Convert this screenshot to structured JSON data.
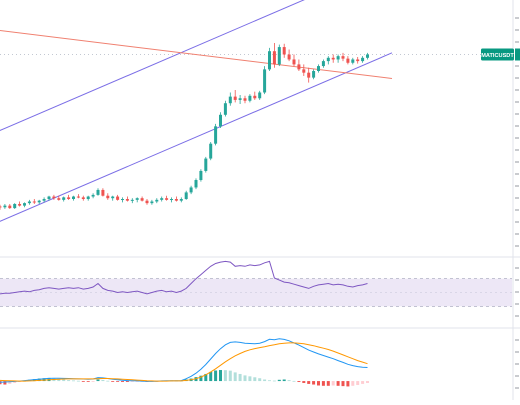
{
  "symbol_tag": "MATICUSDT",
  "colors": {
    "up": "#26a69a",
    "down": "#ef5350",
    "channel": "#7b6ee6",
    "trend": "#f08070",
    "rsi_line": "#7e57c2",
    "rsi_band": "#ede7f6",
    "macd_line": "#2196f3",
    "signal_line": "#ff9800",
    "hist_up_strong": "#26a69a",
    "hist_up_weak": "#b2dfdb",
    "hist_down_strong": "#ef5350",
    "hist_down_weak": "#ffcdd2",
    "label_bg": "#089981",
    "grid": "#f0f3fa",
    "divider": "#e0e3eb"
  },
  "chart_data": [
    {
      "type": "candlestick",
      "panel": "price",
      "series": [
        {
          "name": "",
          "candles": [
            [
              0.7,
              0.702,
              0.696,
              0.699
            ],
            [
              0.699,
              0.703,
              0.697,
              0.701
            ],
            [
              0.701,
              0.703,
              0.697,
              0.698
            ],
            [
              0.698,
              0.704,
              0.697,
              0.703
            ],
            [
              0.703,
              0.706,
              0.7,
              0.701
            ],
            [
              0.701,
              0.705,
              0.699,
              0.704
            ],
            [
              0.704,
              0.708,
              0.702,
              0.706
            ],
            [
              0.706,
              0.709,
              0.703,
              0.705
            ],
            [
              0.705,
              0.708,
              0.703,
              0.707
            ],
            [
              0.707,
              0.711,
              0.705,
              0.709
            ],
            [
              0.709,
              0.713,
              0.707,
              0.712
            ],
            [
              0.712,
              0.714,
              0.708,
              0.71
            ],
            [
              0.71,
              0.713,
              0.707,
              0.708
            ],
            [
              0.708,
              0.712,
              0.706,
              0.711
            ],
            [
              0.711,
              0.714,
              0.708,
              0.709
            ],
            [
              0.709,
              0.713,
              0.707,
              0.712
            ],
            [
              0.712,
              0.715,
              0.71,
              0.711
            ],
            [
              0.711,
              0.713,
              0.707,
              0.709
            ],
            [
              0.709,
              0.713,
              0.707,
              0.712
            ],
            [
              0.712,
              0.716,
              0.71,
              0.714
            ],
            [
              0.714,
              0.722,
              0.713,
              0.72
            ],
            [
              0.72,
              0.722,
              0.712,
              0.713
            ],
            [
              0.713,
              0.716,
              0.708,
              0.71
            ],
            [
              0.71,
              0.713,
              0.707,
              0.712
            ],
            [
              0.712,
              0.714,
              0.707,
              0.708
            ],
            [
              0.708,
              0.711,
              0.705,
              0.709
            ],
            [
              0.709,
              0.712,
              0.706,
              0.707
            ],
            [
              0.707,
              0.71,
              0.704,
              0.708
            ],
            [
              0.708,
              0.711,
              0.705,
              0.71
            ],
            [
              0.71,
              0.712,
              0.706,
              0.707
            ],
            [
              0.707,
              0.709,
              0.702,
              0.704
            ],
            [
              0.704,
              0.708,
              0.702,
              0.706
            ],
            [
              0.706,
              0.71,
              0.704,
              0.708
            ],
            [
              0.708,
              0.712,
              0.706,
              0.71
            ],
            [
              0.71,
              0.713,
              0.707,
              0.708
            ],
            [
              0.708,
              0.711,
              0.705,
              0.709
            ],
            [
              0.709,
              0.712,
              0.706,
              0.707
            ],
            [
              0.707,
              0.711,
              0.705,
              0.709
            ],
            [
              0.709,
              0.719,
              0.708,
              0.717
            ],
            [
              0.717,
              0.725,
              0.715,
              0.723
            ],
            [
              0.723,
              0.734,
              0.721,
              0.732
            ],
            [
              0.732,
              0.745,
              0.73,
              0.743
            ],
            [
              0.743,
              0.76,
              0.741,
              0.758
            ],
            [
              0.758,
              0.778,
              0.756,
              0.776
            ],
            [
              0.776,
              0.8,
              0.774,
              0.797
            ],
            [
              0.797,
              0.814,
              0.795,
              0.811
            ],
            [
              0.811,
              0.828,
              0.809,
              0.825
            ],
            [
              0.825,
              0.838,
              0.822,
              0.833
            ],
            [
              0.833,
              0.841,
              0.826,
              0.829
            ],
            [
              0.829,
              0.835,
              0.824,
              0.831
            ],
            [
              0.831,
              0.834,
              0.825,
              0.828
            ],
            [
              0.828,
              0.836,
              0.826,
              0.834
            ],
            [
              0.834,
              0.839,
              0.829,
              0.831
            ],
            [
              0.831,
              0.84,
              0.829,
              0.838
            ],
            [
              0.838,
              0.87,
              0.836,
              0.866
            ],
            [
              0.866,
              0.892,
              0.864,
              0.888
            ],
            [
              0.888,
              0.898,
              0.868,
              0.872
            ],
            [
              0.872,
              0.896,
              0.87,
              0.893
            ],
            [
              0.893,
              0.897,
              0.88,
              0.884
            ],
            [
              0.884,
              0.89,
              0.876,
              0.878
            ],
            [
              0.878,
              0.884,
              0.87,
              0.872
            ],
            [
              0.872,
              0.878,
              0.864,
              0.866
            ],
            [
              0.866,
              0.872,
              0.858,
              0.862
            ],
            [
              0.862,
              0.868,
              0.85,
              0.856
            ],
            [
              0.856,
              0.866,
              0.854,
              0.864
            ],
            [
              0.864,
              0.872,
              0.862,
              0.87
            ],
            [
              0.87,
              0.878,
              0.868,
              0.876
            ],
            [
              0.876,
              0.882,
              0.872,
              0.88
            ],
            [
              0.88,
              0.884,
              0.874,
              0.878
            ],
            [
              0.878,
              0.884,
              0.874,
              0.882
            ],
            [
              0.882,
              0.886,
              0.876,
              0.879
            ],
            [
              0.879,
              0.882,
              0.872,
              0.874
            ],
            [
              0.874,
              0.88,
              0.872,
              0.878
            ],
            [
              0.878,
              0.881,
              0.873,
              0.876
            ],
            [
              0.876,
              0.882,
              0.874,
              0.88
            ],
            [
              0.88,
              0.886,
              0.878,
              0.884
            ]
          ]
        }
      ],
      "ylim": [
        0.64,
        0.95
      ],
      "channel_upper": [
        [
          -40,
          0.69
        ],
        [
          80,
          0.996
        ]
      ],
      "channel_lower": [
        [
          -40,
          0.58
        ],
        [
          80,
          0.886
        ]
      ],
      "trend_line": [
        [
          -40,
          0.942
        ],
        [
          80,
          0.855
        ]
      ],
      "reference_level": 0.884,
      "grid": false
    },
    {
      "type": "line",
      "panel": "rsi",
      "ylim": [
        0,
        100
      ],
      "band": [
        30,
        70
      ],
      "midline": 50,
      "series": [
        {
          "name": "",
          "values": [
            48,
            49,
            49,
            50,
            51,
            52,
            51,
            53,
            54,
            56,
            57,
            56,
            55,
            56,
            57,
            56,
            57,
            55,
            56,
            58,
            63,
            56,
            53,
            52,
            50,
            51,
            50,
            51,
            52,
            50,
            48,
            50,
            52,
            53,
            51,
            52,
            50,
            52,
            56,
            63,
            70,
            76,
            82,
            88,
            92,
            94,
            95,
            94,
            88,
            89,
            88,
            90,
            89,
            90,
            93,
            95,
            71,
            68,
            65,
            64,
            62,
            60,
            58,
            56,
            59,
            61,
            62,
            63,
            61,
            62,
            61,
            59,
            58,
            60,
            61,
            63
          ]
        }
      ]
    },
    {
      "type": "bar+line",
      "panel": "macd",
      "ylim": [
        -0.012,
        0.033
      ],
      "series": [
        {
          "name": "",
          "kind": "histogram",
          "values": [
            -0.002,
            -0.0022,
            -0.0018,
            -0.0012,
            -0.0006,
            0.0002,
            0.0008,
            0.0012,
            0.0016,
            0.0018,
            0.002,
            0.0018,
            0.0014,
            0.001,
            0.0006,
            0.0004,
            0.0002,
            -0.0002,
            -0.0004,
            -0.0003,
            0.001,
            0.0007,
            0.0002,
            -0.0002,
            -0.0005,
            -0.0006,
            -0.0006,
            -0.0005,
            -0.0004,
            -0.0003,
            -0.0004,
            -0.0003,
            -0.0001,
            0.0002,
            0.0003,
            0.0004,
            0.0004,
            0.0004,
            0.001,
            0.0016,
            0.0025,
            0.0034,
            0.0045,
            0.0058,
            0.0067,
            0.007,
            0.0069,
            0.0066,
            0.0055,
            0.0045,
            0.0036,
            0.003,
            0.0024,
            0.0018,
            0.001,
            0.0005,
            0.0003,
            0.0008,
            0.001,
            0.0006,
            0.0001,
            -0.0006,
            -0.0012,
            -0.0018,
            -0.0022,
            -0.0028,
            -0.003,
            -0.003,
            -0.0028,
            -0.003,
            -0.0032,
            -0.0034,
            -0.003,
            -0.0025,
            -0.0018,
            -0.0012
          ]
        },
        {
          "name": "",
          "kind": "macd",
          "values": [
            -0.0008,
            -0.0006,
            -0.0004,
            -0.0002,
            0.0,
            0.0003,
            0.0006,
            0.0009,
            0.0012,
            0.0015,
            0.0017,
            0.0018,
            0.0018,
            0.0017,
            0.0016,
            0.0015,
            0.0014,
            0.0013,
            0.0012,
            0.0013,
            0.0022,
            0.002,
            0.0016,
            0.0012,
            0.0008,
            0.0005,
            0.0003,
            0.0002,
            0.0001,
            0.0,
            -0.0002,
            -0.0002,
            -0.0001,
            0.0001,
            0.0002,
            0.0002,
            0.0002,
            0.0003,
            0.0015,
            0.003,
            0.005,
            0.0075,
            0.0105,
            0.014,
            0.0175,
            0.0205,
            0.023,
            0.0245,
            0.0248,
            0.0245,
            0.024,
            0.0238,
            0.0236,
            0.024,
            0.025,
            0.0265,
            0.0262,
            0.0268,
            0.0264,
            0.0255,
            0.0242,
            0.0228,
            0.0212,
            0.0196,
            0.0184,
            0.0172,
            0.0162,
            0.0152,
            0.0142,
            0.013,
            0.0118,
            0.0106,
            0.0098,
            0.0092,
            0.0088,
            0.0086
          ]
        },
        {
          "name": "",
          "kind": "signal",
          "values": [
            0.0004,
            0.0003,
            0.0002,
            0.0001,
            0.0,
            0.0,
            0.0001,
            0.0002,
            0.0004,
            0.0006,
            0.0008,
            0.001,
            0.0012,
            0.0013,
            0.0014,
            0.0014,
            0.0014,
            0.0014,
            0.0014,
            0.0014,
            0.0015,
            0.0016,
            0.0016,
            0.0015,
            0.0014,
            0.0012,
            0.001,
            0.0008,
            0.0006,
            0.0004,
            0.0002,
            0.0001,
            0.0,
            0.0,
            0.0,
            0.0001,
            0.0001,
            0.0001,
            0.0004,
            0.0008,
            0.0015,
            0.0025,
            0.004,
            0.0058,
            0.0078,
            0.01,
            0.0122,
            0.0142,
            0.016,
            0.0175,
            0.0188,
            0.0198,
            0.0206,
            0.0212,
            0.0218,
            0.0225,
            0.023,
            0.0236,
            0.024,
            0.0242,
            0.0242,
            0.024,
            0.0236,
            0.023,
            0.0224,
            0.0216,
            0.0208,
            0.02,
            0.019,
            0.0178,
            0.0166,
            0.0154,
            0.0142,
            0.013,
            0.012,
            0.011
          ]
        }
      ]
    }
  ]
}
